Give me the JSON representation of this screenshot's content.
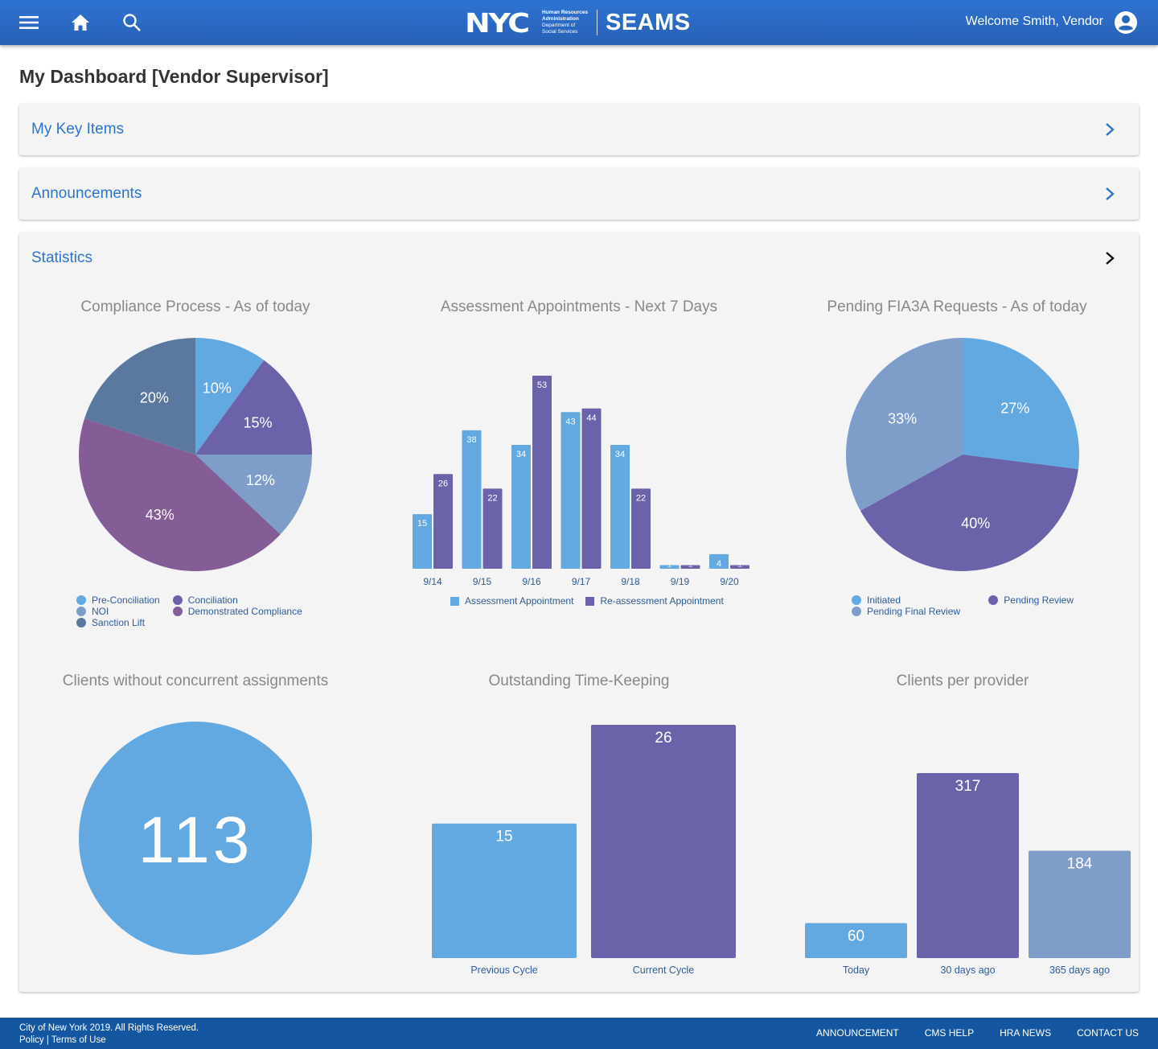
{
  "header": {
    "logo_main": "NYC",
    "logo_sub_1": "Human Resources",
    "logo_sub_2": "Administration",
    "logo_sub_3": "Department of",
    "logo_sub_4": "Social Services",
    "app_name": "SEAMS",
    "welcome": "Welcome Smith, Vendor",
    "icons": [
      "menu-icon",
      "home-icon",
      "search-icon",
      "account-circle-icon"
    ]
  },
  "page": {
    "title": "My Dashboard [Vendor Supervisor]"
  },
  "panels": {
    "key_items": "My Key Items",
    "announcements": "Announcements",
    "statistics": "Statistics"
  },
  "colors": {
    "blue": "#62a8e1",
    "purple": "#6a63aa",
    "light_blue": "#7f9dc9",
    "slate": "#5b789e",
    "plum": "#845c96",
    "brand": "#2d74cf",
    "footer": "#1456a0"
  },
  "chart_data": [
    {
      "type": "pie",
      "title": "Compliance Process - As of today",
      "slices": [
        {
          "label": "Pre-Conciliation",
          "value": 10,
          "display": "10%",
          "color": "#62a8e1"
        },
        {
          "label": "Conciliation",
          "value": 15,
          "display": "15%",
          "color": "#6a63aa"
        },
        {
          "label": "NOI",
          "value": 12,
          "display": "12%",
          "color": "#7f9dc9"
        },
        {
          "label": "Demonstrated Compliance",
          "value": 43,
          "display": "43%",
          "color": "#845c96"
        },
        {
          "label": "Sanction Lift",
          "value": 20,
          "display": "20%",
          "color": "#5b789e"
        }
      ],
      "legend": [
        "Pre-Conciliation",
        "Conciliation",
        "NOI",
        "Demonstrated Compliance",
        "Sanction Lift"
      ],
      "legend_position": "bottom"
    },
    {
      "type": "bar",
      "title": "Assessment Appointments - Next 7 Days",
      "categories": [
        "9/14",
        "9/15",
        "9/16",
        "9/17",
        "9/18",
        "9/19",
        "9/20"
      ],
      "series": [
        {
          "name": "Assessment Appointment",
          "values": [
            15,
            38,
            34,
            43,
            34,
            1,
            4
          ],
          "color": "#62a8e1"
        },
        {
          "name": "Re-assessment Appointment",
          "values": [
            26,
            22,
            53,
            44,
            22,
            1,
            1
          ],
          "color": "#6a63aa"
        }
      ],
      "ylim": [
        0,
        53
      ],
      "grid": false,
      "legend_position": "bottom"
    },
    {
      "type": "pie",
      "title": "Pending FIA3A Requests - As of today",
      "slices": [
        {
          "label": "Initiated",
          "value": 27,
          "display": "27%",
          "color": "#62a8e1"
        },
        {
          "label": "Pending Review",
          "value": 40,
          "display": "40%",
          "color": "#6a63aa"
        },
        {
          "label": "Pending Final Review",
          "value": 33,
          "display": "33%",
          "color": "#7f9dc9"
        }
      ],
      "legend": [
        "Initiated",
        "Pending Review",
        "Pending Final Review"
      ],
      "legend_position": "bottom"
    },
    {
      "type": "table",
      "title": "Clients without concurrent assignments",
      "value": "113",
      "color": "#62a8e1"
    },
    {
      "type": "bar",
      "title": "Outstanding Time-Keeping",
      "categories": [
        "Previous Cycle",
        "Current Cycle"
      ],
      "values": [
        15,
        26
      ],
      "colors": [
        "#62a8e1",
        "#6a63aa"
      ],
      "ylim": [
        0,
        26
      ]
    },
    {
      "type": "bar",
      "title": "Clients per provider",
      "categories": [
        "Today",
        "30 days ago",
        "365 days ago"
      ],
      "values": [
        60,
        317,
        184
      ],
      "colors": [
        "#62a8e1",
        "#6a63aa",
        "#7f9dc9"
      ],
      "ylim": [
        0,
        317
      ]
    }
  ],
  "footer": {
    "copyright": "City of New York 2019. All Rights Reserved.",
    "policy": "Policy",
    "separator": " | ",
    "terms": "Terms of Use",
    "links": [
      "ANNOUNCEMENT",
      "CMS HELP",
      "HRA NEWS",
      "CONTACT US"
    ]
  }
}
